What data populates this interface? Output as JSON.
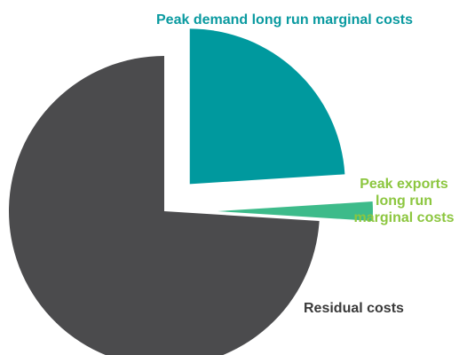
{
  "chart_data": {
    "type": "pie",
    "categories": [
      "Peak demand long run marginal costs",
      "Peak exports long run marginal costs",
      "Residual costs"
    ],
    "values": [
      24,
      2,
      74
    ],
    "colors": [
      "#00999e",
      "#3dbb8a",
      "#4b4b4d"
    ]
  }
}
